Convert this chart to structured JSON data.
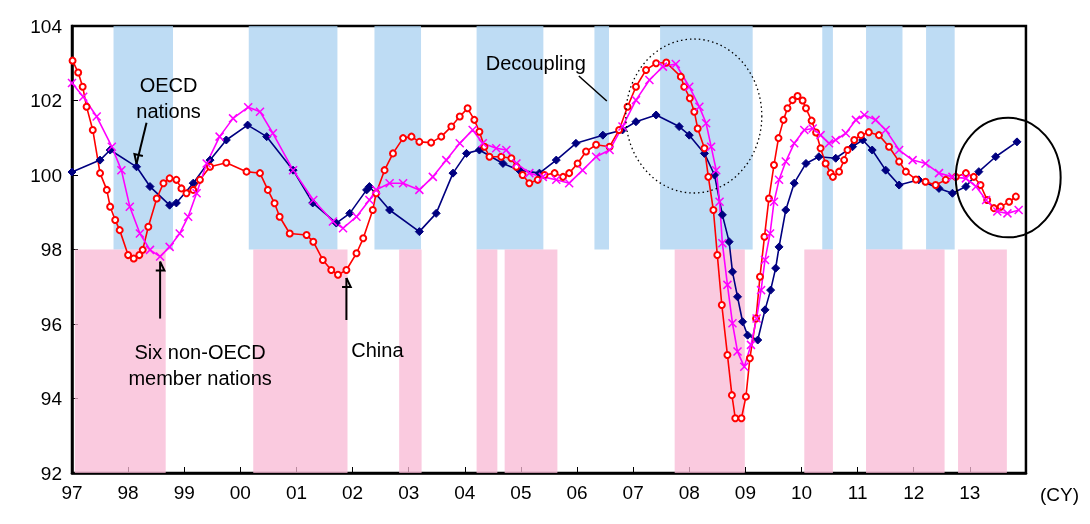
{
  "chart_data": {
    "type": "line",
    "xlabel": "(CY)",
    "xlim": [
      1997,
      2014
    ],
    "xticks": [
      {
        "value": 1997,
        "label": "97"
      },
      {
        "value": 1998,
        "label": "98"
      },
      {
        "value": 1999,
        "label": "99"
      },
      {
        "value": 2000,
        "label": "00"
      },
      {
        "value": 2001,
        "label": "01"
      },
      {
        "value": 2002,
        "label": "02"
      },
      {
        "value": 2003,
        "label": "03"
      },
      {
        "value": 2004,
        "label": "04"
      },
      {
        "value": 2005,
        "label": "05"
      },
      {
        "value": 2006,
        "label": "06"
      },
      {
        "value": 2007,
        "label": "07"
      },
      {
        "value": 2008,
        "label": "08"
      },
      {
        "value": 2009,
        "label": "09"
      },
      {
        "value": 2010,
        "label": "10"
      },
      {
        "value": 2011,
        "label": "11"
      },
      {
        "value": 2012,
        "label": "12"
      },
      {
        "value": 2013,
        "label": "13"
      }
    ],
    "ylim": [
      92,
      104
    ],
    "yticks": [
      92,
      94,
      96,
      98,
      100,
      102,
      104
    ],
    "grid": false,
    "bands": [
      {
        "axis": "x",
        "from": 1997.74,
        "to": 1998.8,
        "color": "#a8d0f0"
      },
      {
        "axis": "x",
        "from": 2000.15,
        "to": 2001.73,
        "color": "#a8d0f0"
      },
      {
        "axis": "x",
        "from": 2002.39,
        "to": 2003.22,
        "color": "#a8d0f0"
      },
      {
        "axis": "x",
        "from": 2004.21,
        "to": 2005.4,
        "color": "#a8d0f0"
      },
      {
        "axis": "x",
        "from": 2006.31,
        "to": 2006.57,
        "color": "#a8d0f0"
      },
      {
        "axis": "x",
        "from": 2007.48,
        "to": 2009.13,
        "color": "#a8d0f0"
      },
      {
        "axis": "x",
        "from": 2010.37,
        "to": 2010.56,
        "color": "#a8d0f0"
      },
      {
        "axis": "x",
        "from": 2011.15,
        "to": 2011.8,
        "color": "#a8d0f0"
      },
      {
        "axis": "x",
        "from": 2012.22,
        "to": 2012.73,
        "color": "#a8d0f0"
      },
      {
        "axis": "x",
        "from": 1997.05,
        "to": 1998.67,
        "color": "#f8b8d4"
      },
      {
        "axis": "x",
        "from": 2000.23,
        "to": 2001.91,
        "color": "#f8b8d4"
      },
      {
        "axis": "x",
        "from": 2002.83,
        "to": 2003.23,
        "color": "#f8b8d4"
      },
      {
        "axis": "x",
        "from": 2004.21,
        "to": 2004.58,
        "color": "#f8b8d4"
      },
      {
        "axis": "x",
        "from": 2004.71,
        "to": 2005.65,
        "color": "#f8b8d4"
      },
      {
        "axis": "x",
        "from": 2007.74,
        "to": 2008.99,
        "color": "#f8b8d4"
      },
      {
        "axis": "x",
        "from": 2010.05,
        "to": 2010.56,
        "color": "#f8b8d4"
      },
      {
        "axis": "x",
        "from": 2011.15,
        "to": 2012.55,
        "color": "#f8b8d4"
      },
      {
        "axis": "x",
        "from": 2012.79,
        "to": 2013.66,
        "color": "#f8b8d4"
      }
    ],
    "annotations": [
      {
        "text": "OECD nations",
        "x": 1998.15,
        "y": 100.22
      },
      {
        "text": "Six non-OECD member nations",
        "x": 1998.57,
        "y": 97.81
      },
      {
        "text": "China",
        "x": 2001.89,
        "y": 97.45
      },
      "Decoupling"
    ],
    "series": [
      {
        "color": "#000080",
        "marker": "diamond",
        "x": [
          1997.0,
          1997.5,
          1997.68,
          1998.15,
          1998.39,
          1998.74,
          1998.86,
          1999.16,
          1999.46,
          1999.75,
          2000.13,
          2000.47,
          2000.94,
          2001.29,
          2001.71,
          2001.95,
          2002.25,
          2002.3,
          2002.66,
          2003.19,
          2003.49,
          2003.79,
          2004.03,
          2004.26,
          2004.68,
          2004.97,
          2005.33,
          2005.63,
          2005.98,
          2006.46,
          2006.81,
          2007.05,
          2007.41,
          2007.82,
          2008.0,
          2008.27,
          2008.45,
          2008.59,
          2008.71,
          2008.77,
          2008.86,
          2008.95,
          2009.04,
          2009.22,
          2009.35,
          2009.45,
          2009.54,
          2009.6,
          2009.72,
          2009.87,
          2010.08,
          2010.31,
          2010.61,
          2010.91,
          2011.09,
          2011.26,
          2011.5,
          2011.74,
          2012.09,
          2012.45,
          2012.69,
          2012.93,
          2013.16,
          2013.46,
          2013.84
        ],
        "values": [
          100.08,
          100.4,
          100.67,
          100.22,
          99.69,
          99.19,
          99.25,
          99.78,
          100.4,
          100.94,
          101.34,
          101.03,
          100.13,
          99.25,
          98.71,
          98.97,
          99.6,
          99.69,
          99.06,
          98.48,
          98.97,
          100.05,
          100.58,
          100.67,
          100.31,
          100.13,
          100.05,
          100.4,
          100.85,
          101.07,
          101.21,
          101.43,
          101.61,
          101.3,
          101.07,
          100.58,
          100.0,
          98.93,
          98.21,
          97.4,
          96.73,
          96.06,
          95.7,
          95.57,
          96.38,
          96.91,
          97.5,
          98.07,
          99.06,
          99.78,
          100.31,
          100.49,
          100.45,
          100.76,
          100.94,
          100.67,
          100.13,
          99.73,
          99.87,
          99.64,
          99.51,
          99.69,
          100.09,
          100.49,
          100.89
        ]
      },
      {
        "color": "#ff0000",
        "marker": "circle",
        "x": [
          1997.01,
          1997.11,
          1997.19,
          1997.26,
          1997.37,
          1997.5,
          1997.62,
          1997.68,
          1997.77,
          1997.85,
          1998.0,
          1998.1,
          1998.2,
          1998.26,
          1998.36,
          1998.51,
          1998.63,
          1998.74,
          1998.86,
          1998.95,
          1999.04,
          1999.16,
          1999.28,
          1999.46,
          1999.75,
          2000.11,
          2000.35,
          2000.49,
          2000.61,
          2000.7,
          2000.88,
          2001.18,
          2001.3,
          2001.47,
          2001.62,
          2001.74,
          2001.89,
          2002.07,
          2002.19,
          2002.36,
          2002.42,
          2002.57,
          2002.72,
          2002.9,
          2003.05,
          2003.19,
          2003.4,
          2003.58,
          2003.76,
          2003.91,
          2004.05,
          2004.17,
          2004.26,
          2004.35,
          2004.44,
          2004.65,
          2004.83,
          2004.92,
          2005.03,
          2005.15,
          2005.3,
          2005.42,
          2005.6,
          2005.75,
          2005.86,
          2006.01,
          2006.16,
          2006.34,
          2006.58,
          2006.75,
          2006.9,
          2007.05,
          2007.23,
          2007.41,
          2007.59,
          2007.85,
          2007.91,
          2008.01,
          2008.09,
          2008.15,
          2008.27,
          2008.34,
          2008.43,
          2008.5,
          2008.58,
          2008.68,
          2008.76,
          2008.82,
          2008.93,
          2009.01,
          2009.08,
          2009.19,
          2009.26,
          2009.34,
          2009.42,
          2009.51,
          2009.59,
          2009.68,
          2009.75,
          2009.84,
          2009.93,
          2010.02,
          2010.08,
          2010.18,
          2010.26,
          2010.34,
          2010.43,
          2010.52,
          2010.56,
          2010.67,
          2010.76,
          2010.82,
          2010.94,
          2011.06,
          2011.2,
          2011.38,
          2011.56,
          2011.74,
          2011.86,
          2012.04,
          2012.21,
          2012.39,
          2012.57,
          2012.75,
          2012.93,
          2013.07,
          2013.19,
          2013.31,
          2013.43,
          2013.55,
          2013.7,
          2013.82
        ],
        "values": [
          103.07,
          102.75,
          102.37,
          101.83,
          101.21,
          100.05,
          99.6,
          99.15,
          98.79,
          98.52,
          97.85,
          97.76,
          97.85,
          97.99,
          98.61,
          99.37,
          99.78,
          99.91,
          99.87,
          99.64,
          99.51,
          99.6,
          99.87,
          100.22,
          100.33,
          100.09,
          100.05,
          99.6,
          99.24,
          98.88,
          98.43,
          98.39,
          98.21,
          97.72,
          97.45,
          97.32,
          97.45,
          97.9,
          98.3,
          99.06,
          99.51,
          100.13,
          100.58,
          100.99,
          101.03,
          100.89,
          100.87,
          101.03,
          101.3,
          101.57,
          101.79,
          101.48,
          101.16,
          100.76,
          100.49,
          100.49,
          100.45,
          100.22,
          100.0,
          99.78,
          99.87,
          100.0,
          100.05,
          99.95,
          100.05,
          100.31,
          100.63,
          100.81,
          100.76,
          101.21,
          101.83,
          102.37,
          102.82,
          103.0,
          103.02,
          102.64,
          102.37,
          102.06,
          101.7,
          101.25,
          100.72,
          99.95,
          99.06,
          97.85,
          96.51,
          95.17,
          94.09,
          93.47,
          93.47,
          94.05,
          95.08,
          96.15,
          97.27,
          98.34,
          99.37,
          100.27,
          100.99,
          101.48,
          101.79,
          102.01,
          102.12,
          102.0,
          101.79,
          101.46,
          101.14,
          100.72,
          100.31,
          100.05,
          99.95,
          100.09,
          100.4,
          100.67,
          100.94,
          101.07,
          101.15,
          101.07,
          100.76,
          100.36,
          100.09,
          99.88,
          99.82,
          99.73,
          99.87,
          99.95,
          100.05,
          99.95,
          99.73,
          99.33,
          99.11,
          99.15,
          99.28,
          99.42
        ]
      },
      {
        "color": "#ff00ff",
        "marker": "cross",
        "x": [
          1997.0,
          1997.2,
          1997.44,
          1997.71,
          1997.88,
          1998.03,
          1998.21,
          1998.39,
          1998.57,
          1998.74,
          1998.92,
          1999.07,
          1999.22,
          1999.4,
          1999.63,
          1999.87,
          2000.14,
          2000.35,
          2000.58,
          2000.94,
          2001.3,
          2001.65,
          2001.83,
          2002.07,
          2002.3,
          2002.42,
          2002.66,
          2002.9,
          2003.19,
          2003.43,
          2003.67,
          2003.91,
          2004.14,
          2004.32,
          2004.56,
          2004.74,
          2004.92,
          2005.15,
          2005.39,
          2005.63,
          2005.86,
          2006.1,
          2006.34,
          2006.58,
          2006.81,
          2007.05,
          2007.29,
          2007.53,
          2007.76,
          2008.0,
          2008.18,
          2008.3,
          2008.39,
          2008.48,
          2008.54,
          2008.59,
          2008.68,
          2008.77,
          2008.86,
          2008.98,
          2009.1,
          2009.2,
          2009.28,
          2009.35,
          2009.44,
          2009.51,
          2009.6,
          2009.72,
          2009.87,
          2010.05,
          2010.2,
          2010.34,
          2010.49,
          2010.61,
          2010.79,
          2010.97,
          2011.12,
          2011.32,
          2011.5,
          2011.74,
          2011.98,
          2012.21,
          2012.45,
          2012.69,
          2012.93,
          2013.11,
          2013.29,
          2013.49,
          2013.67,
          2013.87
        ],
        "values": [
          102.47,
          102.1,
          101.57,
          100.76,
          100.13,
          99.15,
          98.43,
          97.99,
          97.81,
          98.07,
          98.43,
          98.88,
          99.51,
          100.31,
          101.03,
          101.52,
          101.82,
          101.7,
          101.12,
          100.13,
          99.33,
          98.75,
          98.57,
          98.88,
          99.33,
          99.6,
          99.78,
          99.78,
          99.6,
          99.95,
          100.4,
          100.85,
          101.21,
          100.85,
          100.72,
          100.67,
          100.31,
          100.05,
          99.95,
          99.87,
          99.78,
          100.13,
          100.49,
          100.67,
          101.3,
          102.01,
          102.55,
          102.91,
          102.98,
          102.37,
          101.83,
          101.39,
          100.76,
          100.13,
          99.28,
          98.17,
          97.05,
          96.02,
          95.26,
          94.85,
          95.44,
          96.15,
          96.91,
          97.72,
          98.43,
          99.28,
          99.87,
          100.36,
          100.85,
          101.21,
          101.25,
          101.07,
          100.85,
          100.94,
          101.12,
          101.48,
          101.61,
          101.48,
          101.21,
          100.67,
          100.4,
          100.31,
          100.05,
          99.95,
          99.91,
          99.69,
          99.33,
          99.02,
          98.97,
          99.06
        ]
      }
    ]
  }
}
